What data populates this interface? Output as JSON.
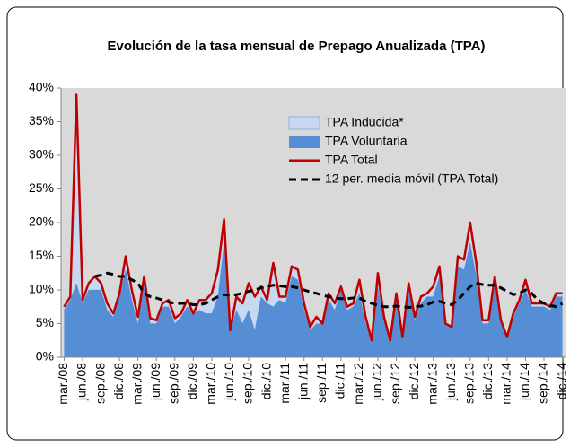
{
  "chart_data": {
    "type": "stacked-area-line",
    "title": "Evolución de la tasa mensual de Prepago Anualizada (TPA)",
    "categories": [
      "mar./08",
      null,
      null,
      "jun./08",
      null,
      null,
      "sep./08",
      null,
      null,
      "dic./08",
      null,
      null,
      "mar./09",
      null,
      null,
      "jun./09",
      null,
      null,
      "sep./09",
      null,
      null,
      "dic./09",
      null,
      null,
      "mar./10",
      null,
      null,
      "jun./10",
      null,
      null,
      "sep./10",
      null,
      null,
      "dic./10",
      null,
      null,
      "mar./11",
      null,
      null,
      "jun./11",
      null,
      null,
      "sep./11",
      null,
      null,
      "dic./11",
      null,
      null,
      "mar./12",
      null,
      null,
      "jun./12",
      null,
      null,
      "sep./12",
      null,
      null,
      "dic./12",
      null,
      null,
      "mar./13",
      null,
      null,
      "jun./13",
      null,
      null,
      "sep./13",
      null,
      null,
      "dic./13",
      null,
      null,
      "mar./14",
      null,
      null,
      "jun./14",
      null,
      null,
      "sep./14",
      null,
      null,
      "dic./14"
    ],
    "series": [
      {
        "name": "TPA Inducida*",
        "color": "#c6d9f1",
        "kind": "area",
        "stack": "top",
        "values": [
          0.5,
          0.5,
          28,
          0.5,
          1,
          2,
          1,
          1,
          0.5,
          0.5,
          2,
          1.5,
          1,
          1,
          0.8,
          0.5,
          0.5,
          1,
          0.8,
          0.5,
          1,
          0,
          1.5,
          2,
          3,
          4,
          3.5,
          0,
          2,
          3,
          4,
          5,
          1.5,
          0.5,
          6.5,
          0.5,
          1,
          1.5,
          1.5,
          1,
          0.5,
          1,
          0,
          1,
          1,
          0.5,
          0.5,
          0.5,
          2,
          1,
          0,
          2,
          0.5,
          0,
          1,
          0,
          1,
          0.5,
          1,
          0.5,
          1.5,
          1.5,
          0,
          0,
          1.5,
          1.5,
          3,
          2,
          0.5,
          0.5,
          1.5,
          0.5,
          0,
          0.5,
          0.5,
          1.5,
          0.5,
          0.5,
          0.5,
          0.5,
          0.5,
          0.5
        ]
      },
      {
        "name": "TPA Voluntaria",
        "color": "#558ed5",
        "kind": "area",
        "stack": "base",
        "values": [
          7,
          8.5,
          11,
          8,
          10,
          10,
          10,
          7,
          6,
          9,
          13,
          8.5,
          5,
          11,
          5,
          5,
          7.5,
          7.5,
          5,
          6,
          7.5,
          6.5,
          7,
          6.5,
          6.5,
          9,
          17,
          4,
          7,
          5,
          7,
          4,
          9,
          8,
          7.5,
          8.5,
          8,
          12,
          11.5,
          7,
          4,
          5,
          5,
          8.5,
          7,
          10,
          7,
          7.5,
          9.5,
          5,
          2.5,
          10.5,
          5.5,
          2.5,
          8.5,
          3,
          10,
          5.5,
          8,
          9,
          9,
          12,
          5,
          4.5,
          13.5,
          13,
          17,
          12,
          5,
          5,
          10.5,
          5,
          3,
          6,
          8,
          10,
          7.5,
          7.5,
          7.5,
          7,
          9,
          9
        ]
      },
      {
        "name": "TPA Total",
        "color": "#c00000",
        "kind": "line",
        "values": [
          7.5,
          9,
          39,
          8.5,
          11,
          12,
          11,
          8,
          6.5,
          9.5,
          15,
          10,
          6,
          12,
          5.8,
          5.5,
          8,
          8.5,
          5.8,
          6.5,
          8.5,
          6.5,
          8.5,
          8.5,
          9.5,
          13,
          20.5,
          4,
          9,
          8,
          11,
          9,
          10.5,
          8.5,
          14,
          9,
          9,
          13.5,
          13,
          8,
          4.5,
          6,
          5,
          9.5,
          8,
          10.5,
          7.5,
          8,
          11.5,
          6,
          2.5,
          12.5,
          6,
          2.5,
          9.5,
          3,
          11,
          6,
          9,
          9.5,
          10.5,
          13.5,
          5,
          4.5,
          15,
          14.5,
          20,
          14,
          5.5,
          5.5,
          12,
          5.5,
          3,
          6.5,
          8.5,
          11.5,
          8,
          8,
          8,
          7.5,
          9.5,
          9.5
        ]
      },
      {
        "name": "12 per. media móvil (TPA Total)",
        "color": "#000000",
        "kind": "dashed",
        "values": [
          null,
          null,
          null,
          null,
          null,
          12,
          12.2,
          12.5,
          12.3,
          12,
          12,
          11.5,
          11,
          9.5,
          9,
          8.8,
          8.5,
          8.2,
          8,
          8,
          8,
          7.8,
          7.8,
          8,
          8.5,
          9,
          9.3,
          9.2,
          9.3,
          9.5,
          9.8,
          10,
          10.3,
          10.5,
          10.7,
          10.6,
          10.5,
          10.5,
          10.3,
          10,
          9.7,
          9.5,
          9.2,
          9,
          8.8,
          8.7,
          8.7,
          8.8,
          8.8,
          8.3,
          8,
          7.7,
          7.5,
          7.5,
          7.6,
          7.5,
          7.4,
          7.5,
          7.6,
          7.8,
          8.2,
          8.3,
          8,
          7.8,
          8.5,
          9.5,
          10.5,
          11,
          10.8,
          10.7,
          10.7,
          10.3,
          9.8,
          9.3,
          9.5,
          10,
          9.5,
          8.5,
          8,
          7.7,
          7.5,
          8
        ]
      }
    ],
    "ylim": [
      0,
      40
    ],
    "yticks": [
      {
        "value": 0,
        "label": "0%"
      },
      {
        "value": 5,
        "label": "5%"
      },
      {
        "value": 10,
        "label": "10%"
      },
      {
        "value": 15,
        "label": "15%"
      },
      {
        "value": 20,
        "label": "20%"
      },
      {
        "value": 25,
        "label": "25%"
      },
      {
        "value": 30,
        "label": "30%"
      },
      {
        "value": 35,
        "label": "35%"
      },
      {
        "value": 40,
        "label": "40%"
      }
    ],
    "grid": false,
    "legend": "top-right",
    "plot_background": "#d9d9d9"
  }
}
